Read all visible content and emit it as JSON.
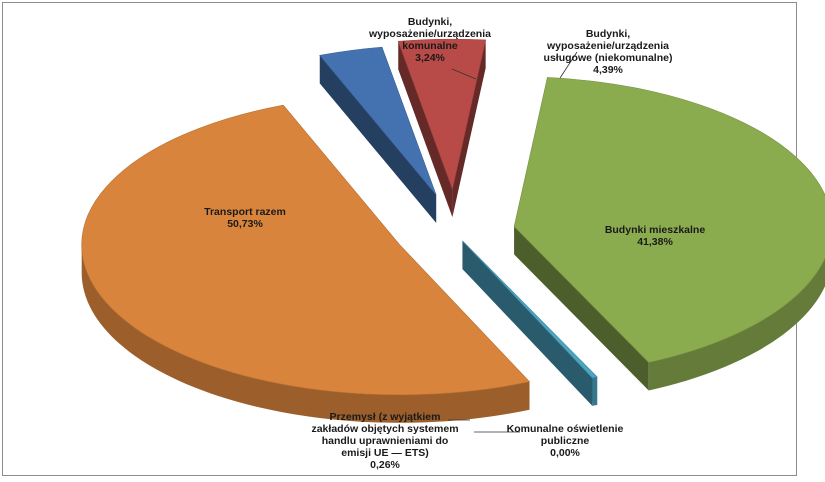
{
  "chart_data": {
    "type": "pie",
    "style": "3d-exploded",
    "title": "",
    "legend": "none",
    "slices": [
      {
        "label": "Budynki mieszkalne",
        "value": 41.38,
        "value_text": "41,38%",
        "color": "#8bab4f"
      },
      {
        "label": "Komunalne oświetlenie publiczne",
        "value": 0.0,
        "value_text": "0,00%",
        "color": "#9a9a9a"
      },
      {
        "label": "Przemysł (z wyjątkiem zakładów objętych systemem handlu uprawnieniami do emisji UE — ETS)",
        "value": 0.26,
        "value_text": "0,26%",
        "color": "#4aa6c4"
      },
      {
        "label": "Transport razem",
        "value": 50.73,
        "value_text": "50,73%",
        "color": "#d9843c"
      },
      {
        "label": "Budynki, wyposażenie/urządzenia komunalne",
        "value": 3.24,
        "value_text": "3,24%",
        "color": "#4472b0"
      },
      {
        "label": "Budynki, wyposażenie/urządzenia usługowe (niekomunalne)",
        "value": 4.39,
        "value_text": "4,39%",
        "color": "#b84b48"
      }
    ]
  }
}
